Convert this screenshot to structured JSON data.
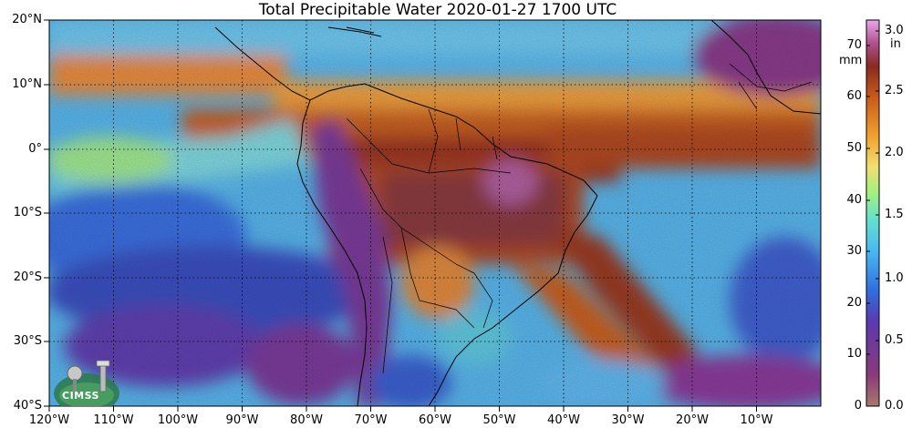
{
  "title": "Total Precipitable Water  2020-01-27 1700 UTC",
  "map": {
    "lat_labels": [
      "20°N",
      "10°N",
      "0°",
      "10°S",
      "20°S",
      "30°S",
      "40°S"
    ],
    "lon_labels": [
      "120°W",
      "110°W",
      "100°W",
      "90°W",
      "80°W",
      "70°W",
      "60°W",
      "50°W",
      "40°W",
      "30°W",
      "20°W",
      "10°W"
    ],
    "extent": {
      "lon_min": -120,
      "lon_max": 0,
      "lat_min": -40,
      "lat_max": 20
    },
    "grid": "dotted"
  },
  "colorbar": {
    "mm_unit": "mm",
    "in_unit": "in",
    "mm_ticks": [
      "70",
      "60",
      "50",
      "40",
      "30",
      "20",
      "10",
      "0"
    ],
    "in_ticks": [
      "3.0",
      "2.5",
      "2.0",
      "1.5",
      "1.0",
      "0.5",
      "0.0"
    ],
    "colors": [
      "#a87a6a",
      "#7a2f8a",
      "#3a3fc0",
      "#2f8ff0",
      "#48d0e0",
      "#8ef08a",
      "#f0e070",
      "#f0a030",
      "#d0601a",
      "#8a2a20",
      "#c060b0",
      "#e0a0e0"
    ]
  },
  "logo": {
    "text": "CIMSS"
  }
}
